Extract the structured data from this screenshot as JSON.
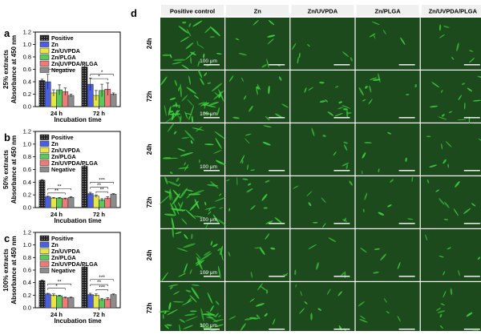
{
  "panel_letters": [
    "a",
    "b",
    "c",
    "d"
  ],
  "chart_data": [
    {
      "type": "bar",
      "panel": "a",
      "ylabel": "Absorbance at 450 nm",
      "side_label": "25% extracts",
      "xlabel": "Incubation time",
      "categories": [
        "24 h",
        "72 h"
      ],
      "ylim": [
        0,
        1.2
      ],
      "yticks": [
        "0.0",
        "0.2",
        "0.4",
        "0.6",
        "0.8",
        "1.0",
        "1.2"
      ],
      "legend_position": "top-right",
      "series": [
        {
          "name": "Positive",
          "values": [
            0.42,
            0.64
          ],
          "errors": [
            0.02,
            0.03
          ]
        },
        {
          "name": "Zn",
          "values": [
            0.4,
            0.36
          ],
          "errors": [
            0.12,
            0.1
          ]
        },
        {
          "name": "Zn/UVPDA",
          "values": [
            0.22,
            0.18
          ],
          "errors": [
            0.05,
            0.08
          ]
        },
        {
          "name": "Zn/PLGA",
          "values": [
            0.27,
            0.26
          ],
          "errors": [
            0.08,
            0.1
          ]
        },
        {
          "name": "Zn/UVPDA/PLGA",
          "values": [
            0.24,
            0.28
          ],
          "errors": [
            0.06,
            0.1
          ]
        },
        {
          "name": "Negative",
          "values": [
            0.18,
            0.2
          ],
          "errors": [
            0.02,
            0.02
          ]
        }
      ],
      "significance": [
        {
          "group": 0,
          "from": 1,
          "to": 5,
          "level": 0.6,
          "label": "*"
        },
        {
          "group": 1,
          "from": 1,
          "to": 5,
          "level": 0.52,
          "label": "*"
        },
        {
          "group": 1,
          "from": 1,
          "to": 4,
          "level": 0.45,
          "label": "*"
        }
      ]
    },
    {
      "type": "bar",
      "panel": "b",
      "ylabel": "Absorbance at 450 nm",
      "side_label": "50% extracts",
      "xlabel": "Incubation time",
      "categories": [
        "24 h",
        "72 h"
      ],
      "ylim": [
        0,
        1.2
      ],
      "yticks": [
        "0.0",
        "0.2",
        "0.4",
        "0.6",
        "0.8",
        "1.0",
        "1.2"
      ],
      "legend_position": "top-right",
      "series": [
        {
          "name": "Positive",
          "values": [
            0.43,
            0.65
          ],
          "errors": [
            0.01,
            0.02
          ]
        },
        {
          "name": "Zn",
          "values": [
            0.17,
            0.22
          ],
          "errors": [
            0.01,
            0.02
          ]
        },
        {
          "name": "Zn/UVPDA",
          "values": [
            0.15,
            0.18
          ],
          "errors": [
            0.01,
            0.02
          ]
        },
        {
          "name": "Zn/PLGA",
          "values": [
            0.15,
            0.12
          ],
          "errors": [
            0.01,
            0.02
          ]
        },
        {
          "name": "Zn/UVPDA/PLGA",
          "values": [
            0.14,
            0.15
          ],
          "errors": [
            0.01,
            0.02
          ]
        },
        {
          "name": "Negative",
          "values": [
            0.16,
            0.21
          ],
          "errors": [
            0.01,
            0.01
          ]
        }
      ],
      "significance": [
        {
          "group": 0,
          "from": 1,
          "to": 5,
          "level": 0.3,
          "label": "**"
        },
        {
          "group": 0,
          "from": 1,
          "to": 4,
          "level": 0.23,
          "label": "**"
        },
        {
          "group": 1,
          "from": 1,
          "to": 5,
          "level": 0.4,
          "label": "***"
        },
        {
          "group": 1,
          "from": 1,
          "to": 4,
          "level": 0.32,
          "label": "**"
        },
        {
          "group": 1,
          "from": 2,
          "to": 4,
          "level": 0.25,
          "label": "**"
        }
      ]
    },
    {
      "type": "bar",
      "panel": "c",
      "ylabel": "Absorbance at 450 nm",
      "side_label": "100% extracts",
      "xlabel": "Incubation time",
      "categories": [
        "24 h",
        "72 h"
      ],
      "ylim": [
        0,
        1.2
      ],
      "yticks": [
        "0.0",
        "0.2",
        "0.4",
        "0.6",
        "0.8",
        "1.0",
        "1.2"
      ],
      "legend_position": "top-right",
      "series": [
        {
          "name": "Positive",
          "values": [
            0.43,
            0.65
          ],
          "errors": [
            0.01,
            0.02
          ]
        },
        {
          "name": "Zn",
          "values": [
            0.22,
            0.21
          ],
          "errors": [
            0.01,
            0.02
          ]
        },
        {
          "name": "Zn/UVPDA",
          "values": [
            0.2,
            0.2
          ],
          "errors": [
            0.02,
            0.02
          ]
        },
        {
          "name": "Zn/PLGA",
          "values": [
            0.19,
            0.13
          ],
          "errors": [
            0.01,
            0.02
          ]
        },
        {
          "name": "Zn/UVPDA/PLGA",
          "values": [
            0.16,
            0.14
          ],
          "errors": [
            0.01,
            0.02
          ]
        },
        {
          "name": "Negative",
          "values": [
            0.16,
            0.21
          ],
          "errors": [
            0.01,
            0.01
          ]
        }
      ],
      "significance": [
        {
          "group": 0,
          "from": 1,
          "to": 5,
          "level": 0.38,
          "label": "**"
        },
        {
          "group": 0,
          "from": 1,
          "to": 4,
          "level": 0.31,
          "label": "*"
        },
        {
          "group": 1,
          "from": 1,
          "to": 5,
          "level": 0.45,
          "label": "***"
        },
        {
          "group": 1,
          "from": 1,
          "to": 4,
          "level": 0.37,
          "label": "**"
        },
        {
          "group": 1,
          "from": 2,
          "to": 4,
          "level": 0.29,
          "label": "***"
        }
      ]
    }
  ],
  "series_styles": [
    {
      "name": "Positive",
      "fill": "#2b2b2b",
      "pattern": true
    },
    {
      "name": "Zn",
      "fill": "#4a5fe0"
    },
    {
      "name": "Zn/UVPDA",
      "fill": "#e5e547"
    },
    {
      "name": "Zn/PLGA",
      "fill": "#5cc85c"
    },
    {
      "name": "Zn/UVPDA/PLGA",
      "fill": "#ee7a7a"
    },
    {
      "name": "Negative",
      "fill": "#8c8c8c"
    }
  ],
  "micrographs": {
    "columns": [
      "Positive control",
      "Zn",
      "Zn/UVPDA",
      "Zn/PLGA",
      "Zn/UVPDA/PLGA"
    ],
    "rows": [
      "24h",
      "72h",
      "24h",
      "72h",
      "24h",
      "72h"
    ],
    "scale_bar_label": "100 μm",
    "cell_color": "#3ed23e",
    "background_color": "#1c4a1c",
    "cell_density": [
      [
        24,
        9,
        6,
        5,
        7
      ],
      [
        48,
        14,
        14,
        10,
        14
      ],
      [
        22,
        8,
        7,
        6,
        7
      ],
      [
        40,
        12,
        9,
        7,
        10
      ],
      [
        24,
        8,
        6,
        5,
        6
      ],
      [
        38,
        12,
        10,
        6,
        9
      ]
    ]
  }
}
